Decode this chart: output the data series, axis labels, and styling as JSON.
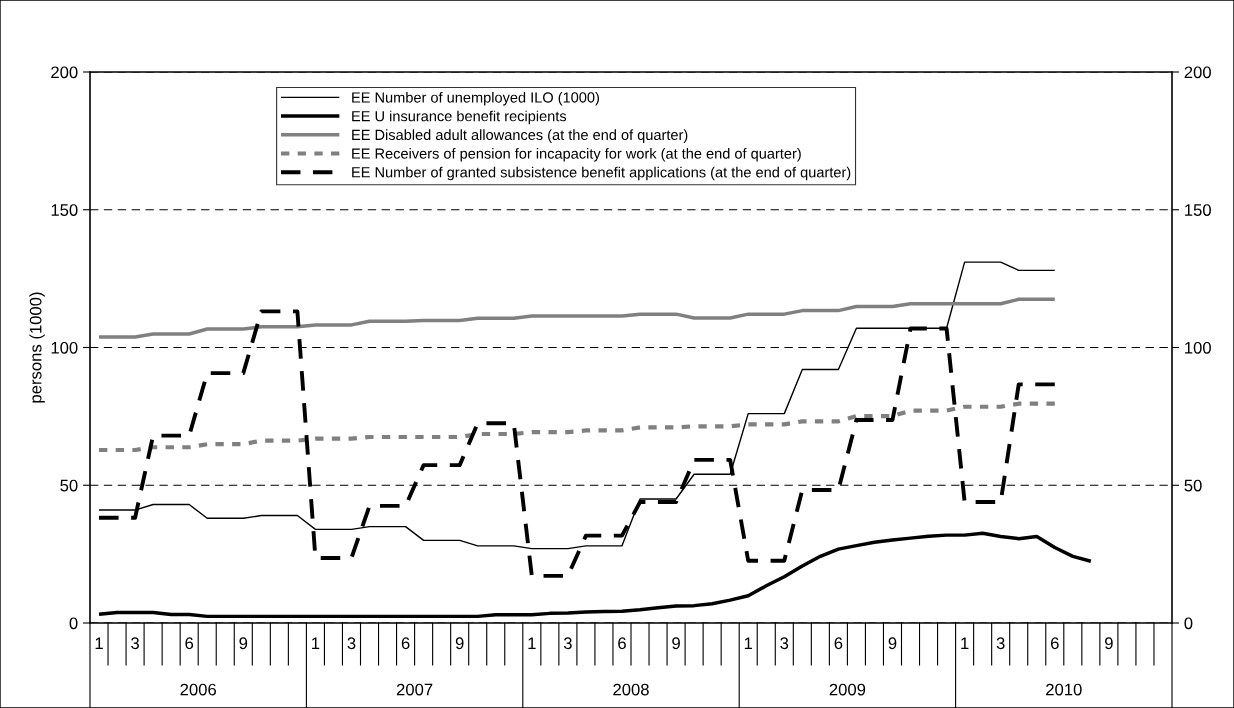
{
  "chart_data": {
    "type": "line",
    "ylabel": "persons (1000)",
    "categories": [
      "1",
      null,
      "3",
      null,
      null,
      "6",
      null,
      null,
      "9",
      null,
      null,
      null,
      "1",
      null,
      "3",
      null,
      null,
      "6",
      null,
      null,
      "9",
      null,
      null,
      null,
      "1",
      null,
      "3",
      null,
      null,
      "6",
      null,
      null,
      "9",
      null,
      null,
      null,
      "1",
      null,
      "3",
      null,
      null,
      "6",
      null,
      null,
      "9",
      null,
      null,
      null,
      "1",
      null,
      "3",
      null,
      null,
      "6",
      null,
      null,
      "9",
      null,
      null,
      null
    ],
    "annotations": [
      "2006",
      "2007",
      "2008",
      "2009",
      "2010"
    ],
    "ylim": [
      0,
      200
    ],
    "yticks": [
      0,
      50,
      100,
      150,
      200
    ],
    "y2lim": [
      0,
      200
    ],
    "y2ticks": [
      0,
      50,
      100,
      150,
      200
    ],
    "grid": "y",
    "legend": "top",
    "series": [
      {
        "name": "EE Number of unemployed ILO (1000)",
        "color": "#000000",
        "line_style": "solid",
        "values": [
          41,
          41,
          41,
          43,
          43,
          43,
          38,
          38,
          38,
          39,
          39,
          39,
          34,
          34,
          34,
          35,
          35,
          35,
          30,
          30,
          30,
          28,
          28,
          28,
          27,
          27,
          27,
          28,
          28,
          28,
          45,
          45,
          45,
          54,
          54,
          54,
          76,
          76,
          76,
          92,
          92,
          92,
          107,
          107,
          107,
          107,
          107,
          107,
          131,
          131,
          131,
          128,
          128,
          128,
          null,
          null,
          null,
          null,
          null,
          null
        ]
      },
      {
        "name": "EE U insurance benefit recipients",
        "color": "#000000",
        "line_style": "solid",
        "values": [
          3.2,
          3.8,
          3.8,
          3.8,
          3.1,
          3.1,
          2.4,
          2.4,
          2.4,
          2.4,
          2.4,
          2.4,
          2.4,
          2.4,
          2.4,
          2.4,
          2.4,
          2.4,
          2.4,
          2.4,
          2.4,
          2.4,
          3.0,
          3.0,
          3.0,
          3.5,
          3.6,
          4.0,
          4.2,
          4.3,
          4.8,
          5.5,
          6.2,
          6.3,
          7.0,
          8.3,
          9.9,
          13.5,
          16.8,
          20.7,
          24.2,
          26.8,
          28.1,
          29.3,
          30.1,
          30.8,
          31.5,
          31.9,
          31.9,
          32.6,
          31.4,
          30.6,
          31.4,
          27.4,
          24.2,
          22.4,
          null,
          null,
          null,
          null
        ]
      },
      {
        "name": "EE Disabled adult allowances (at the end of quarter)",
        "color": "#808080",
        "line_style": "solid",
        "values": [
          103.8,
          103.8,
          103.8,
          104.9,
          104.9,
          104.9,
          106.7,
          106.7,
          106.7,
          107.5,
          107.5,
          107.5,
          108.2,
          108.2,
          108.2,
          109.5,
          109.5,
          109.5,
          109.8,
          109.8,
          109.8,
          110.6,
          110.6,
          110.6,
          111.4,
          111.4,
          111.4,
          111.4,
          111.4,
          111.4,
          112.1,
          112.1,
          112.1,
          110.7,
          110.7,
          110.7,
          112.1,
          112.1,
          112.1,
          113.4,
          113.4,
          113.4,
          114.9,
          114.9,
          114.9,
          115.9,
          115.9,
          115.9,
          115.9,
          115.9,
          115.9,
          117.5,
          117.5,
          117.5,
          null,
          null,
          null,
          null,
          null,
          null
        ]
      },
      {
        "name": "EE Receivers of pension for incapacity for work (at the end of quarter)",
        "color": "#808080",
        "line_style": "dotted",
        "values": [
          62.8,
          62.8,
          62.8,
          63.8,
          63.8,
          63.8,
          64.9,
          64.9,
          64.9,
          66.2,
          66.2,
          66.2,
          66.9,
          66.9,
          66.9,
          67.5,
          67.5,
          67.5,
          67.5,
          67.5,
          67.5,
          68.6,
          68.6,
          68.6,
          69.3,
          69.3,
          69.3,
          69.9,
          69.9,
          69.9,
          71.0,
          71.0,
          71.0,
          71.4,
          71.4,
          71.4,
          72.1,
          72.1,
          72.1,
          73.2,
          73.2,
          73.2,
          75.1,
          75.1,
          75.1,
          77.1,
          77.1,
          77.1,
          78.5,
          78.5,
          78.5,
          79.6,
          79.6,
          79.6,
          null,
          null,
          null,
          null,
          null,
          null
        ]
      },
      {
        "name": "EE Number of granted subsistence benefit applications (at the end of quarter)",
        "color": "#000000",
        "line_style": "dashed",
        "values": [
          38.2,
          38.2,
          38.2,
          68,
          68,
          68,
          90.7,
          90.7,
          90.7,
          113.1,
          113.1,
          113.1,
          23.6,
          23.6,
          23.6,
          42.5,
          42.5,
          42.5,
          57.3,
          57.3,
          57.3,
          72.5,
          72.5,
          72.5,
          17.1,
          17.1,
          17.1,
          31.7,
          31.7,
          31.7,
          43.9,
          43.9,
          43.9,
          59.2,
          59.2,
          59.2,
          22.6,
          22.6,
          22.6,
          48.3,
          48.3,
          48.3,
          73.7,
          73.7,
          73.7,
          106.9,
          106.9,
          106.9,
          43.9,
          43.9,
          43.9,
          86.6,
          86.6,
          86.6,
          null,
          null,
          null,
          null,
          null,
          null
        ]
      }
    ]
  }
}
